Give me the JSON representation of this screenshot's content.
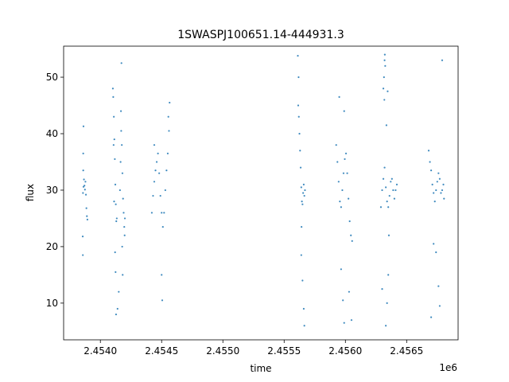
{
  "chart_data": {
    "type": "scatter",
    "title": "1SWASPJ100651.14-444931.3",
    "xlabel": "time",
    "ylabel": "flux",
    "x_offset_label": "1e6",
    "xlim": [
      2453700,
      2456920
    ],
    "ylim": [
      3.5,
      55.5
    ],
    "x_ticks": [
      2454000,
      2454500,
      2455000,
      2455500,
      2456000,
      2456500
    ],
    "x_tick_labels": [
      "2.4540",
      "2.4545",
      "2.4550",
      "2.4555",
      "2.4560",
      "2.4565"
    ],
    "y_ticks": [
      10,
      20,
      30,
      40,
      50
    ],
    "y_tick_labels": [
      "10",
      "20",
      "30",
      "40",
      "50"
    ],
    "grid": false,
    "marker_color": "#1f77b4",
    "series": [
      {
        "values": [
          {
            "x": 2453858,
            "y": 29.5
          },
          {
            "x": 2453862,
            "y": 30.6
          },
          {
            "x": 2453866,
            "y": 31.9
          },
          {
            "x": 2453870,
            "y": 30.8
          },
          {
            "x": 2453874,
            "y": 30.1
          },
          {
            "x": 2453878,
            "y": 31.5
          },
          {
            "x": 2453882,
            "y": 29.2
          },
          {
            "x": 2453886,
            "y": 26.8
          },
          {
            "x": 2453890,
            "y": 25.4
          },
          {
            "x": 2453894,
            "y": 24.8
          },
          {
            "x": 2453860,
            "y": 33.5
          },
          {
            "x": 2453856,
            "y": 21.8
          },
          {
            "x": 2453857,
            "y": 18.5
          },
          {
            "x": 2453862,
            "y": 41.3
          },
          {
            "x": 2453860,
            "y": 36.5
          },
          {
            "x": 2454105,
            "y": 46.5
          },
          {
            "x": 2454110,
            "y": 43.0
          },
          {
            "x": 2454114,
            "y": 39.0
          },
          {
            "x": 2454118,
            "y": 35.5
          },
          {
            "x": 2454122,
            "y": 31.0
          },
          {
            "x": 2454126,
            "y": 27.5
          },
          {
            "x": 2454130,
            "y": 24.5
          },
          {
            "x": 2454134,
            "y": 25.0
          },
          {
            "x": 2454108,
            "y": 38.0
          },
          {
            "x": 2454112,
            "y": 28.0
          },
          {
            "x": 2454120,
            "y": 19.0
          },
          {
            "x": 2454124,
            "y": 15.5
          },
          {
            "x": 2454128,
            "y": 8.0
          },
          {
            "x": 2454140,
            "y": 9.0
          },
          {
            "x": 2454102,
            "y": 48.0
          },
          {
            "x": 2454160,
            "y": 30.0
          },
          {
            "x": 2454165,
            "y": 35.0
          },
          {
            "x": 2454170,
            "y": 40.5
          },
          {
            "x": 2454175,
            "y": 38.0
          },
          {
            "x": 2454180,
            "y": 33.0
          },
          {
            "x": 2454185,
            "y": 28.5
          },
          {
            "x": 2454190,
            "y": 26.0
          },
          {
            "x": 2454195,
            "y": 23.5
          },
          {
            "x": 2454200,
            "y": 25.0
          },
          {
            "x": 2454172,
            "y": 52.5
          },
          {
            "x": 2454168,
            "y": 44.0
          },
          {
            "x": 2454178,
            "y": 20.0
          },
          {
            "x": 2454182,
            "y": 15.0
          },
          {
            "x": 2454150,
            "y": 12.0
          },
          {
            "x": 2454198,
            "y": 22.0
          },
          {
            "x": 2454420,
            "y": 26.0
          },
          {
            "x": 2454430,
            "y": 29.0
          },
          {
            "x": 2454440,
            "y": 31.5
          },
          {
            "x": 2454450,
            "y": 33.5
          },
          {
            "x": 2454460,
            "y": 35.0
          },
          {
            "x": 2454470,
            "y": 36.5
          },
          {
            "x": 2454480,
            "y": 33.0
          },
          {
            "x": 2454490,
            "y": 29.0
          },
          {
            "x": 2454500,
            "y": 26.0
          },
          {
            "x": 2454510,
            "y": 23.5
          },
          {
            "x": 2454520,
            "y": 26.0
          },
          {
            "x": 2454530,
            "y": 30.0
          },
          {
            "x": 2454540,
            "y": 33.5
          },
          {
            "x": 2454550,
            "y": 36.5
          },
          {
            "x": 2454560,
            "y": 40.5
          },
          {
            "x": 2454565,
            "y": 45.5
          },
          {
            "x": 2454555,
            "y": 43.0
          },
          {
            "x": 2454500,
            "y": 15.0
          },
          {
            "x": 2454505,
            "y": 10.5
          },
          {
            "x": 2454440,
            "y": 38.0
          },
          {
            "x": 2455615,
            "y": 45.0
          },
          {
            "x": 2455620,
            "y": 43.0
          },
          {
            "x": 2455625,
            "y": 40.0
          },
          {
            "x": 2455630,
            "y": 37.0
          },
          {
            "x": 2455635,
            "y": 34.0
          },
          {
            "x": 2455640,
            "y": 30.5
          },
          {
            "x": 2455645,
            "y": 28.0
          },
          {
            "x": 2455650,
            "y": 27.5
          },
          {
            "x": 2455655,
            "y": 29.5
          },
          {
            "x": 2455660,
            "y": 31.0
          },
          {
            "x": 2455665,
            "y": 29.0
          },
          {
            "x": 2455670,
            "y": 30.0
          },
          {
            "x": 2455612,
            "y": 53.8
          },
          {
            "x": 2455618,
            "y": 50.0
          },
          {
            "x": 2455640,
            "y": 18.5
          },
          {
            "x": 2455650,
            "y": 14.0
          },
          {
            "x": 2455660,
            "y": 9.0
          },
          {
            "x": 2455665,
            "y": 6.0
          },
          {
            "x": 2455642,
            "y": 23.5
          },
          {
            "x": 2455925,
            "y": 38.0
          },
          {
            "x": 2455935,
            "y": 35.0
          },
          {
            "x": 2455945,
            "y": 31.5
          },
          {
            "x": 2455955,
            "y": 28.0
          },
          {
            "x": 2455965,
            "y": 27.0
          },
          {
            "x": 2455975,
            "y": 30.0
          },
          {
            "x": 2455985,
            "y": 33.0
          },
          {
            "x": 2455995,
            "y": 35.5
          },
          {
            "x": 2456005,
            "y": 36.5
          },
          {
            "x": 2456015,
            "y": 33.0
          },
          {
            "x": 2456025,
            "y": 28.5
          },
          {
            "x": 2456035,
            "y": 24.5
          },
          {
            "x": 2456045,
            "y": 22.0
          },
          {
            "x": 2456055,
            "y": 21.0
          },
          {
            "x": 2455950,
            "y": 46.5
          },
          {
            "x": 2455990,
            "y": 44.0
          },
          {
            "x": 2455965,
            "y": 16.0
          },
          {
            "x": 2455980,
            "y": 10.5
          },
          {
            "x": 2455990,
            "y": 6.5
          },
          {
            "x": 2456030,
            "y": 12.0
          },
          {
            "x": 2456050,
            "y": 7.0
          },
          {
            "x": 2456310,
            "y": 48.0
          },
          {
            "x": 2456315,
            "y": 50.0
          },
          {
            "x": 2456320,
            "y": 53.0
          },
          {
            "x": 2456325,
            "y": 52.0
          },
          {
            "x": 2456318,
            "y": 46.0
          },
          {
            "x": 2456322,
            "y": 54.0
          },
          {
            "x": 2456290,
            "y": 27.0
          },
          {
            "x": 2456300,
            "y": 30.0
          },
          {
            "x": 2456310,
            "y": 32.0
          },
          {
            "x": 2456320,
            "y": 34.0
          },
          {
            "x": 2456330,
            "y": 30.5
          },
          {
            "x": 2456340,
            "y": 28.0
          },
          {
            "x": 2456350,
            "y": 27.0
          },
          {
            "x": 2456360,
            "y": 29.0
          },
          {
            "x": 2456370,
            "y": 31.5
          },
          {
            "x": 2456380,
            "y": 32.0
          },
          {
            "x": 2456390,
            "y": 30.0
          },
          {
            "x": 2456400,
            "y": 28.5
          },
          {
            "x": 2456410,
            "y": 30.0
          },
          {
            "x": 2456420,
            "y": 31.0
          },
          {
            "x": 2456330,
            "y": 6.0
          },
          {
            "x": 2456340,
            "y": 10.0
          },
          {
            "x": 2456350,
            "y": 15.0
          },
          {
            "x": 2456335,
            "y": 41.5
          },
          {
            "x": 2456345,
            "y": 47.5
          },
          {
            "x": 2456300,
            "y": 12.5
          },
          {
            "x": 2456355,
            "y": 22.0
          },
          {
            "x": 2456680,
            "y": 37.0
          },
          {
            "x": 2456690,
            "y": 35.0
          },
          {
            "x": 2456700,
            "y": 33.5
          },
          {
            "x": 2456710,
            "y": 31.0
          },
          {
            "x": 2456720,
            "y": 29.5
          },
          {
            "x": 2456730,
            "y": 28.0
          },
          {
            "x": 2456740,
            "y": 30.0
          },
          {
            "x": 2456750,
            "y": 31.5
          },
          {
            "x": 2456760,
            "y": 33.0
          },
          {
            "x": 2456770,
            "y": 32.0
          },
          {
            "x": 2456780,
            "y": 29.5
          },
          {
            "x": 2456790,
            "y": 30.0
          },
          {
            "x": 2456800,
            "y": 31.0
          },
          {
            "x": 2456805,
            "y": 28.5
          },
          {
            "x": 2456790,
            "y": 53.0
          },
          {
            "x": 2456740,
            "y": 19.0
          },
          {
            "x": 2456760,
            "y": 13.0
          },
          {
            "x": 2456770,
            "y": 9.5
          },
          {
            "x": 2456700,
            "y": 7.5
          },
          {
            "x": 2456720,
            "y": 20.5
          }
        ]
      }
    ]
  }
}
